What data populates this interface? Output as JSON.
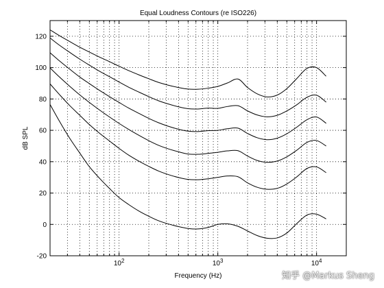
{
  "chart_data": {
    "type": "line",
    "title": "Equal Loudness Contours (re ISO226)",
    "xlabel": "Frequency (Hz)",
    "ylabel": "dB SPL",
    "xscale": "log",
    "xlim": [
      20,
      20000
    ],
    "ylim": [
      -20,
      130
    ],
    "yticks": [
      -20,
      0,
      20,
      40,
      60,
      80,
      100,
      120
    ],
    "xticks": [
      {
        "value": 100,
        "base": "10",
        "exp": "2"
      },
      {
        "value": 1000,
        "base": "10",
        "exp": "3"
      },
      {
        "value": 10000,
        "base": "10",
        "exp": "4"
      }
    ],
    "grid": true,
    "line_color": "#000000",
    "x": [
      20,
      25,
      31.5,
      40,
      50,
      63,
      80,
      100,
      125,
      160,
      200,
      250,
      315,
      400,
      500,
      630,
      800,
      1000,
      1250,
      1600,
      2000,
      2500,
      3150,
      4000,
      5000,
      6300,
      8000,
      10000,
      12500
    ],
    "series": [
      {
        "values": [
          76.5,
          65.6,
          55.1,
          45.5,
          36.8,
          29.6,
          22.9,
          17.1,
          12.7,
          8.4,
          5.2,
          2.4,
          0.3,
          -1.4,
          -2.6,
          -2.9,
          -1.9,
          0.0,
          0.4,
          -1.2,
          -4.2,
          -7.1,
          -8.8,
          -8.6,
          -5.5,
          0.5,
          6.0,
          6.5,
          3.5
        ]
      },
      {
        "values": [
          89.6,
          82.7,
          75.9,
          69.6,
          63.7,
          58.3,
          53.2,
          48.5,
          44.2,
          40.2,
          37.0,
          34.1,
          31.8,
          29.9,
          28.7,
          28.5,
          29.1,
          30.0,
          30.9,
          30.4,
          26.5,
          23.7,
          22.4,
          23.0,
          25.8,
          30.3,
          35.7,
          36.7,
          33.0
        ]
      },
      {
        "values": [
          99.8,
          93.9,
          88.2,
          82.6,
          77.8,
          73.1,
          68.5,
          64.4,
          60.6,
          56.7,
          53.4,
          50.5,
          48.2,
          46.3,
          44.9,
          44.7,
          45.3,
          46.0,
          46.9,
          47.0,
          43.6,
          40.8,
          39.6,
          40.4,
          43.1,
          47.3,
          52.3,
          53.5,
          50.0
        ]
      },
      {
        "values": [
          109.5,
          104.2,
          99.1,
          94.0,
          89.8,
          85.6,
          81.5,
          77.8,
          74.2,
          70.7,
          67.6,
          64.9,
          62.6,
          60.7,
          59.5,
          59.2,
          59.8,
          60.0,
          61.0,
          61.4,
          58.0,
          55.3,
          54.0,
          55.0,
          57.8,
          62.0,
          66.8,
          68.5,
          64.5
        ]
      },
      {
        "values": [
          118.9,
          114.2,
          109.8,
          105.4,
          101.6,
          97.8,
          94.2,
          90.8,
          87.5,
          84.3,
          81.5,
          78.9,
          76.8,
          75.0,
          73.8,
          73.6,
          74.2,
          74.0,
          75.2,
          75.7,
          72.4,
          69.8,
          68.6,
          69.6,
          72.4,
          76.3,
          81.1,
          82.4,
          78.0
        ]
      },
      {
        "values": [
          124.1,
          120.3,
          116.7,
          113.0,
          109.9,
          106.8,
          103.8,
          100.9,
          98.1,
          95.3,
          92.9,
          90.6,
          88.8,
          87.3,
          86.3,
          86.2,
          86.9,
          88.0,
          90.2,
          92.7,
          87.3,
          83.3,
          81.3,
          82.5,
          86.6,
          93.0,
          99.5,
          100.0,
          94.5
        ]
      }
    ]
  },
  "watermark": {
    "text": "知乎 @Markus Sheng"
  }
}
